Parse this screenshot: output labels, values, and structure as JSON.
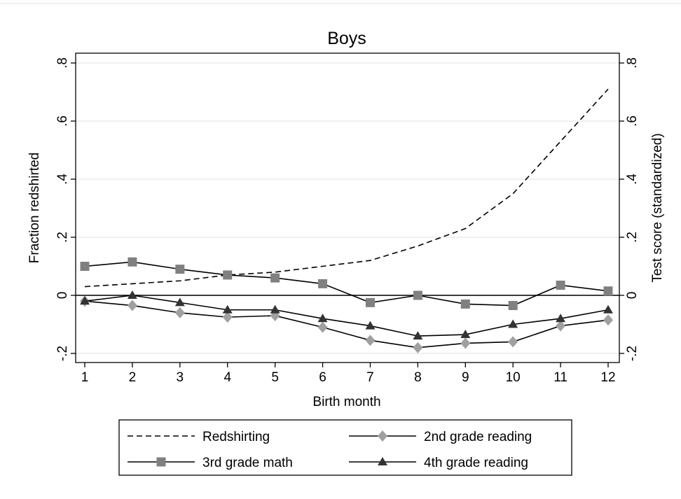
{
  "chart_data": {
    "type": "line",
    "title": "Boys",
    "xlabel": "Birth month",
    "ylabel": "Fraction redshirted",
    "ylabel_right": "Test score (standardized)",
    "x": [
      1,
      2,
      3,
      4,
      5,
      6,
      7,
      8,
      9,
      10,
      11,
      12
    ],
    "x_tick_labels": [
      "1",
      "2",
      "3",
      "4",
      "5",
      "6",
      "7",
      "8",
      "9",
      "10",
      "11",
      "12"
    ],
    "ylim": [
      -0.2,
      0.8
    ],
    "y_ticks": [
      -0.2,
      0,
      0.2,
      0.4,
      0.6,
      0.8
    ],
    "y_tick_labels": [
      "-.2",
      "0",
      ".2",
      ".4",
      ".6",
      ".8"
    ],
    "y_right_tick_labels": [
      "-.2",
      "0",
      ".2",
      ".4",
      ".6",
      ".8"
    ],
    "grid": true,
    "reference_line_y": 0,
    "legend_position": "bottom",
    "series": [
      {
        "name": "Redshirting",
        "style": "dashed",
        "marker": "none",
        "color": "#000000",
        "values": [
          0.03,
          0.04,
          0.05,
          0.07,
          0.08,
          0.1,
          0.12,
          0.17,
          0.23,
          0.35,
          0.53,
          0.71
        ]
      },
      {
        "name": "2nd grade reading",
        "style": "solid",
        "marker": "diamond",
        "color": "#000000",
        "marker_color": "#a0a0a0",
        "values": [
          -0.02,
          -0.035,
          -0.06,
          -0.075,
          -0.07,
          -0.11,
          -0.155,
          -0.18,
          -0.165,
          -0.16,
          -0.105,
          -0.085
        ]
      },
      {
        "name": "3rd grade math",
        "style": "solid",
        "marker": "square",
        "color": "#000000",
        "marker_color": "#808080",
        "values": [
          0.1,
          0.115,
          0.09,
          0.07,
          0.06,
          0.04,
          -0.025,
          0.0,
          -0.03,
          -0.035,
          0.035,
          0.015
        ]
      },
      {
        "name": "4th grade reading",
        "style": "solid",
        "marker": "triangle",
        "color": "#000000",
        "marker_color": "#333333",
        "values": [
          -0.02,
          0.0,
          -0.025,
          -0.05,
          -0.05,
          -0.08,
          -0.105,
          -0.14,
          -0.135,
          -0.1,
          -0.08,
          -0.05
        ]
      }
    ]
  }
}
